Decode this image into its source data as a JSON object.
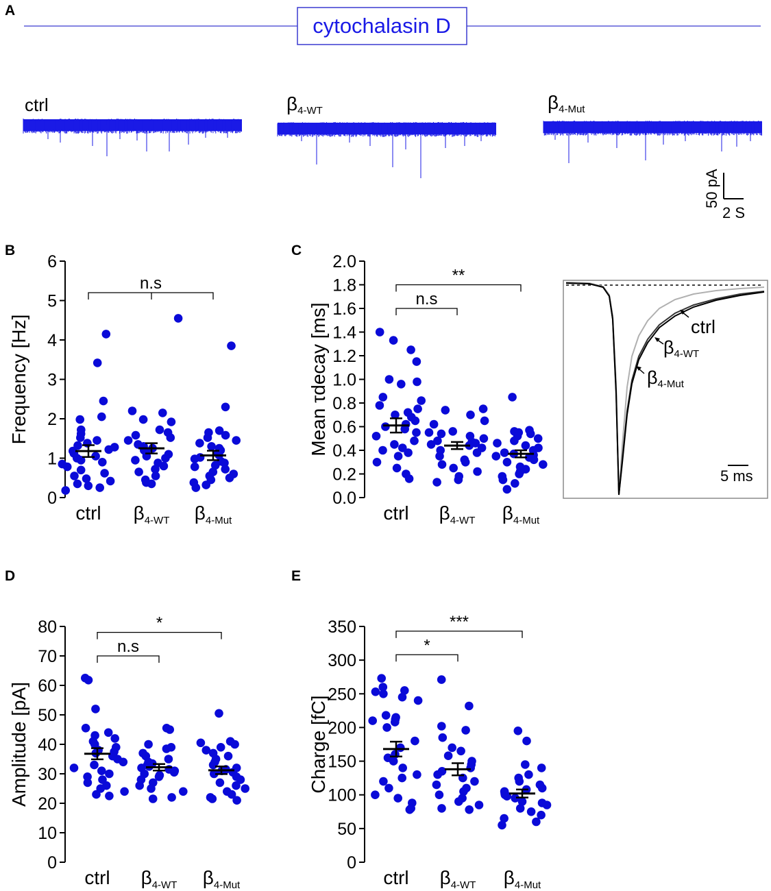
{
  "panel_labels": {
    "a": "A",
    "b": "B",
    "c": "C",
    "d": "D",
    "e": "E"
  },
  "colors": {
    "data": "#0a0ad8",
    "trace": "#1a1ae6",
    "banner": "#3a3ad0",
    "mean": "#000000",
    "inset_light": "#b0b0b0"
  },
  "banner": {
    "title": "cytochalasin D"
  },
  "traces": [
    {
      "label": "ctrl",
      "greek": "",
      "sub": ""
    },
    {
      "label": "",
      "greek": "β",
      "sub": "4-WT"
    },
    {
      "label": "",
      "greek": "β",
      "sub": "4-Mut"
    }
  ],
  "scale_bar": {
    "y_label": "50 pA",
    "x_label": "2 S"
  },
  "groups": [
    {
      "greek": "",
      "label": "ctrl",
      "sub": ""
    },
    {
      "greek": "β",
      "label": "",
      "sub": "4-WT"
    },
    {
      "greek": "β",
      "label": "",
      "sub": "4-Mut"
    }
  ],
  "inset": {
    "labels": [
      {
        "greek": "",
        "text": "ctrl",
        "sub": ""
      },
      {
        "greek": "β",
        "text": "",
        "sub": "4-WT"
      },
      {
        "greek": "β",
        "text": "",
        "sub": "4-Mut"
      }
    ],
    "scale_label": "5 ms"
  },
  "chart_data": [
    {
      "id": "B",
      "type": "scatter",
      "title": "",
      "ylabel": "Frequency [Hz]",
      "ylim": [
        0,
        6
      ],
      "yticks": [
        "0",
        "1",
        "2",
        "3",
        "4",
        "5",
        "6"
      ],
      "categories": [
        "ctrl",
        "β4-WT",
        "β4-Mut"
      ],
      "series": [
        {
          "name": "ctrl",
          "values": [
            4.15,
            3.42,
            2.45,
            2.05,
            1.98,
            1.72,
            1.62,
            1.52,
            1.45,
            1.38,
            1.32,
            1.28,
            1.22,
            1.18,
            1.12,
            1.05,
            1.0,
            0.95,
            0.9,
            0.85,
            0.78,
            0.7,
            0.62,
            0.55,
            0.48,
            0.42,
            0.35,
            0.3,
            0.25,
            0.18
          ],
          "mean": 1.18,
          "sem": 0.15
        },
        {
          "name": "β4-WT",
          "values": [
            4.55,
            2.2,
            2.15,
            1.98,
            1.92,
            1.72,
            1.65,
            1.58,
            1.52,
            1.45,
            1.35,
            1.3,
            1.25,
            1.2,
            1.15,
            1.1,
            1.05,
            1.0,
            0.95,
            0.88,
            0.8,
            0.72,
            0.65,
            0.55,
            0.45,
            0.38,
            0.35
          ],
          "mean": 1.25,
          "sem": 0.13
        },
        {
          "name": "β4-Mut",
          "values": [
            3.85,
            2.3,
            1.7,
            1.65,
            1.58,
            1.52,
            1.45,
            1.38,
            1.3,
            1.25,
            1.2,
            1.12,
            1.08,
            1.02,
            0.98,
            0.92,
            0.88,
            0.82,
            0.78,
            0.72,
            0.65,
            0.6,
            0.55,
            0.5,
            0.45,
            0.38,
            0.32,
            0.25
          ],
          "mean": 1.07,
          "sem": 0.12
        }
      ],
      "significance": [
        {
          "from": 0,
          "to": 2,
          "label": "n.s",
          "y": 5.2,
          "middle_tick": true
        }
      ]
    },
    {
      "id": "C",
      "type": "scatter",
      "title": "",
      "ylabel_prefix": "Mean ",
      "ylabel_greek": "τ",
      "ylabel_suffix": "decay [ms]",
      "ylim": [
        0,
        2
      ],
      "yticks": [
        "0.0",
        "0.2",
        "0.4",
        "0.6",
        "0.8",
        "1.0",
        "1.2",
        "1.4",
        "1.6",
        "1.8",
        "2.0"
      ],
      "categories": [
        "ctrl",
        "β4-WT",
        "β4-Mut"
      ],
      "series": [
        {
          "name": "ctrl",
          "values": [
            1.4,
            1.33,
            1.25,
            1.15,
            1.0,
            0.98,
            0.96,
            0.85,
            0.82,
            0.78,
            0.75,
            0.72,
            0.7,
            0.68,
            0.65,
            0.62,
            0.6,
            0.58,
            0.55,
            0.52,
            0.48,
            0.45,
            0.42,
            0.4,
            0.38,
            0.35,
            0.3,
            0.25,
            0.2,
            0.16
          ],
          "mean": 0.61,
          "sem": 0.06
        },
        {
          "name": "β4-WT",
          "values": [
            0.75,
            0.74,
            0.7,
            0.65,
            0.62,
            0.56,
            0.55,
            0.54,
            0.52,
            0.5,
            0.48,
            0.47,
            0.46,
            0.45,
            0.44,
            0.42,
            0.4,
            0.38,
            0.35,
            0.32,
            0.3,
            0.28,
            0.25,
            0.22,
            0.18,
            0.15,
            0.13
          ],
          "mean": 0.44,
          "sem": 0.03
        },
        {
          "name": "β4-Mut",
          "values": [
            0.85,
            0.57,
            0.56,
            0.55,
            0.54,
            0.52,
            0.5,
            0.48,
            0.46,
            0.44,
            0.42,
            0.4,
            0.38,
            0.37,
            0.36,
            0.35,
            0.34,
            0.32,
            0.3,
            0.28,
            0.26,
            0.24,
            0.22,
            0.2,
            0.18,
            0.15,
            0.12,
            0.07
          ],
          "mean": 0.37,
          "sem": 0.03
        }
      ],
      "significance": [
        {
          "from": 0,
          "to": 1,
          "label": "n.s",
          "y": 1.6,
          "middle_tick": false
        },
        {
          "from": 0,
          "to": 2,
          "label": "**",
          "y": 1.8,
          "middle_tick": false
        }
      ]
    },
    {
      "id": "D",
      "type": "scatter",
      "title": "",
      "ylabel": "Amplitude [pA]",
      "ylim": [
        0,
        80
      ],
      "yticks": [
        "0",
        "10",
        "20",
        "30",
        "40",
        "50",
        "60",
        "70",
        "80"
      ],
      "categories": [
        "ctrl",
        "β4-WT",
        "β4-Mut"
      ],
      "series": [
        {
          "name": "ctrl",
          "values": [
            62.5,
            61.8,
            52,
            45.5,
            44,
            43,
            42,
            41,
            40,
            39,
            38,
            37.5,
            37,
            36,
            35,
            34,
            33,
            32,
            31,
            30,
            29,
            28,
            27,
            26,
            25,
            24,
            23,
            22.5
          ],
          "mean": 36.8,
          "sem": 1.9
        },
        {
          "name": "β4-WT",
          "values": [
            45.5,
            45,
            40,
            39,
            38.5,
            37,
            36,
            35,
            34,
            33.5,
            33,
            32.5,
            32,
            31.5,
            31,
            30.5,
            30,
            29.5,
            29,
            28,
            27,
            26,
            25,
            24,
            22,
            21.5
          ],
          "mean": 32.2,
          "sem": 1.1
        },
        {
          "name": "β4-Mut",
          "values": [
            50.5,
            41,
            40.5,
            40,
            39,
            38,
            37,
            36,
            35,
            34,
            33,
            32,
            31.5,
            31,
            30.5,
            30,
            29,
            28,
            27,
            26,
            25,
            24,
            23,
            22,
            21.5,
            21
          ],
          "mean": 31.2,
          "sem": 1.3
        }
      ],
      "significance": [
        {
          "from": 0,
          "to": 1,
          "label": "n.s",
          "y": 70,
          "middle_tick": false
        },
        {
          "from": 0,
          "to": 2,
          "label": "*",
          "y": 78,
          "middle_tick": false
        }
      ]
    },
    {
      "id": "E",
      "type": "scatter",
      "title": "",
      "ylabel": "Charge [fC]",
      "ylim": [
        0,
        350
      ],
      "yticks": [
        "0",
        "50",
        "100",
        "150",
        "200",
        "250",
        "300",
        "350"
      ],
      "categories": [
        "ctrl",
        "β4-WT",
        "β4-Mut"
      ],
      "series": [
        {
          "name": "ctrl",
          "values": [
            273,
            260,
            255,
            253,
            250,
            245,
            240,
            218,
            215,
            212,
            210,
            208,
            200,
            180,
            170,
            160,
            155,
            150,
            140,
            130,
            125,
            120,
            110,
            100,
            95,
            88,
            80,
            78
          ],
          "mean": 168,
          "sem": 11
        },
        {
          "name": "β4-WT",
          "values": [
            271,
            232,
            202,
            196,
            185,
            170,
            165,
            158,
            150,
            145,
            140,
            135,
            130,
            125,
            120,
            115,
            110,
            105,
            100,
            95,
            90,
            85,
            80,
            78
          ],
          "mean": 138,
          "sem": 9
        },
        {
          "name": "β4-Mut",
          "values": [
            195,
            180,
            145,
            140,
            130,
            125,
            120,
            115,
            110,
            108,
            105,
            102,
            100,
            98,
            95,
            90,
            88,
            85,
            80,
            75,
            70,
            65,
            60,
            55
          ],
          "mean": 102,
          "sem": 6
        }
      ],
      "significance": [
        {
          "from": 0,
          "to": 1,
          "label": "*",
          "y": 308,
          "middle_tick": false
        },
        {
          "from": 0,
          "to": 2,
          "label": "***",
          "y": 343,
          "middle_tick": false
        }
      ]
    }
  ]
}
